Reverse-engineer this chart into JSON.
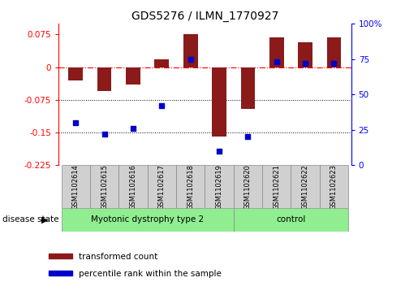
{
  "title": "GDS5276 / ILMN_1770927",
  "samples": [
    "GSM1102614",
    "GSM1102615",
    "GSM1102616",
    "GSM1102617",
    "GSM1102618",
    "GSM1102619",
    "GSM1102620",
    "GSM1102621",
    "GSM1102622",
    "GSM1102623"
  ],
  "bar_values": [
    -0.03,
    -0.055,
    -0.04,
    0.018,
    0.075,
    -0.16,
    -0.095,
    0.068,
    0.058,
    0.068
  ],
  "percentile_values": [
    30,
    22,
    26,
    42,
    75,
    10,
    20,
    73,
    72,
    72
  ],
  "bar_color": "#8B1A1A",
  "dot_color": "#0000CD",
  "ylim_left": [
    -0.225,
    0.1
  ],
  "ylim_right": [
    0,
    100
  ],
  "yticks_left": [
    0.075,
    0,
    -0.075,
    -0.15,
    -0.225
  ],
  "yticks_right": [
    100,
    75,
    50,
    25,
    0
  ],
  "group1_label": "Myotonic dystrophy type 2",
  "group2_label": "control",
  "group1_indices": [
    0,
    1,
    2,
    3,
    4,
    5
  ],
  "group2_indices": [
    6,
    7,
    8,
    9
  ],
  "disease_state_label": "disease state",
  "legend1": "transformed count",
  "legend2": "percentile rank within the sample",
  "bar_width": 0.5,
  "label_box_color": "#d0d0d0",
  "group_box_color": "#90EE90",
  "bg_color": "#ffffff"
}
